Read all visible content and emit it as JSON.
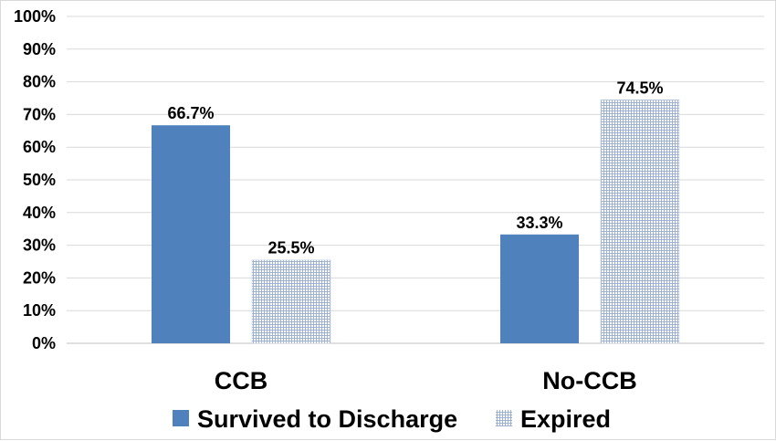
{
  "chart_data": {
    "type": "bar",
    "categories": [
      "CCB",
      "No-CCB"
    ],
    "series": [
      {
        "name": "Survived to Discharge",
        "values": [
          66.7,
          33.3
        ],
        "color": "#4f81bd",
        "fill": "solid"
      },
      {
        "name": "Expired",
        "values": [
          25.5,
          74.5
        ],
        "color": "#b8c7dd",
        "fill": "grid-pattern"
      }
    ],
    "data_labels": [
      [
        "66.7%",
        "33.3%"
      ],
      [
        "25.5%",
        "74.5%"
      ]
    ],
    "y_ticks": [
      "0%",
      "10%",
      "20%",
      "30%",
      "40%",
      "50%",
      "60%",
      "70%",
      "80%",
      "90%",
      "100%"
    ],
    "ylim": [
      0,
      100
    ],
    "y_unit": "%",
    "grid": true,
    "legend_position": "bottom",
    "title": "",
    "xlabel": "",
    "ylabel": ""
  }
}
